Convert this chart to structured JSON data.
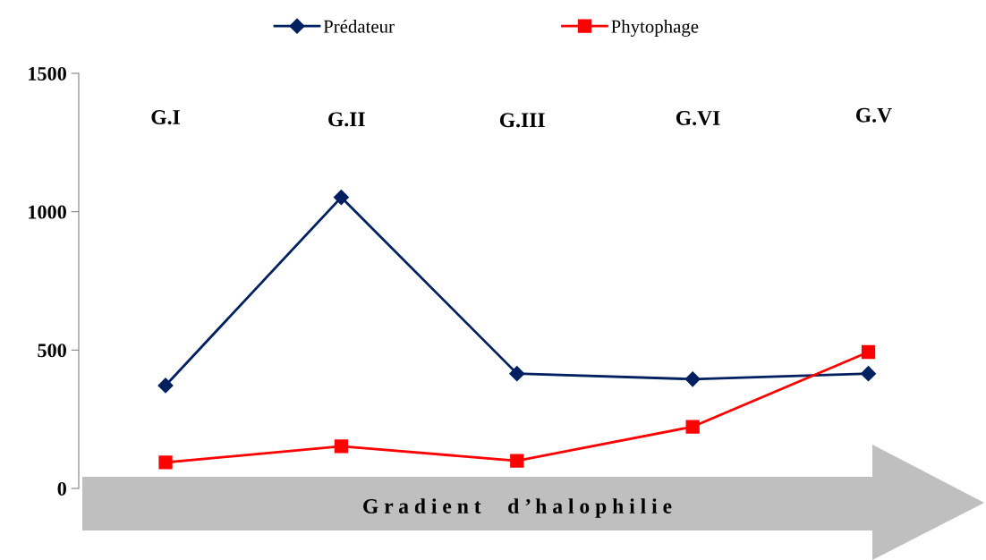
{
  "chart_data": {
    "type": "line",
    "categories": [
      "G.I",
      "G.II",
      "G.III",
      "G.VI",
      "G.V"
    ],
    "series": [
      {
        "name": "Prédateur",
        "color": "#002060",
        "marker": "diamond",
        "values": [
          372,
          1052,
          415,
          395,
          415
        ]
      },
      {
        "name": "Phytophage",
        "color": "#ff0000",
        "marker": "square",
        "values": [
          94,
          152,
          100,
          223,
          493
        ]
      }
    ],
    "ylim": [
      0,
      1500
    ],
    "yticks": [
      0,
      500,
      1000,
      1500
    ],
    "tick_labels": "y",
    "grid": false,
    "legend": "top",
    "line_style": "solid",
    "annotations": [
      "G r a d i e n t     d ’ h a l o p h i l i e"
    ]
  }
}
